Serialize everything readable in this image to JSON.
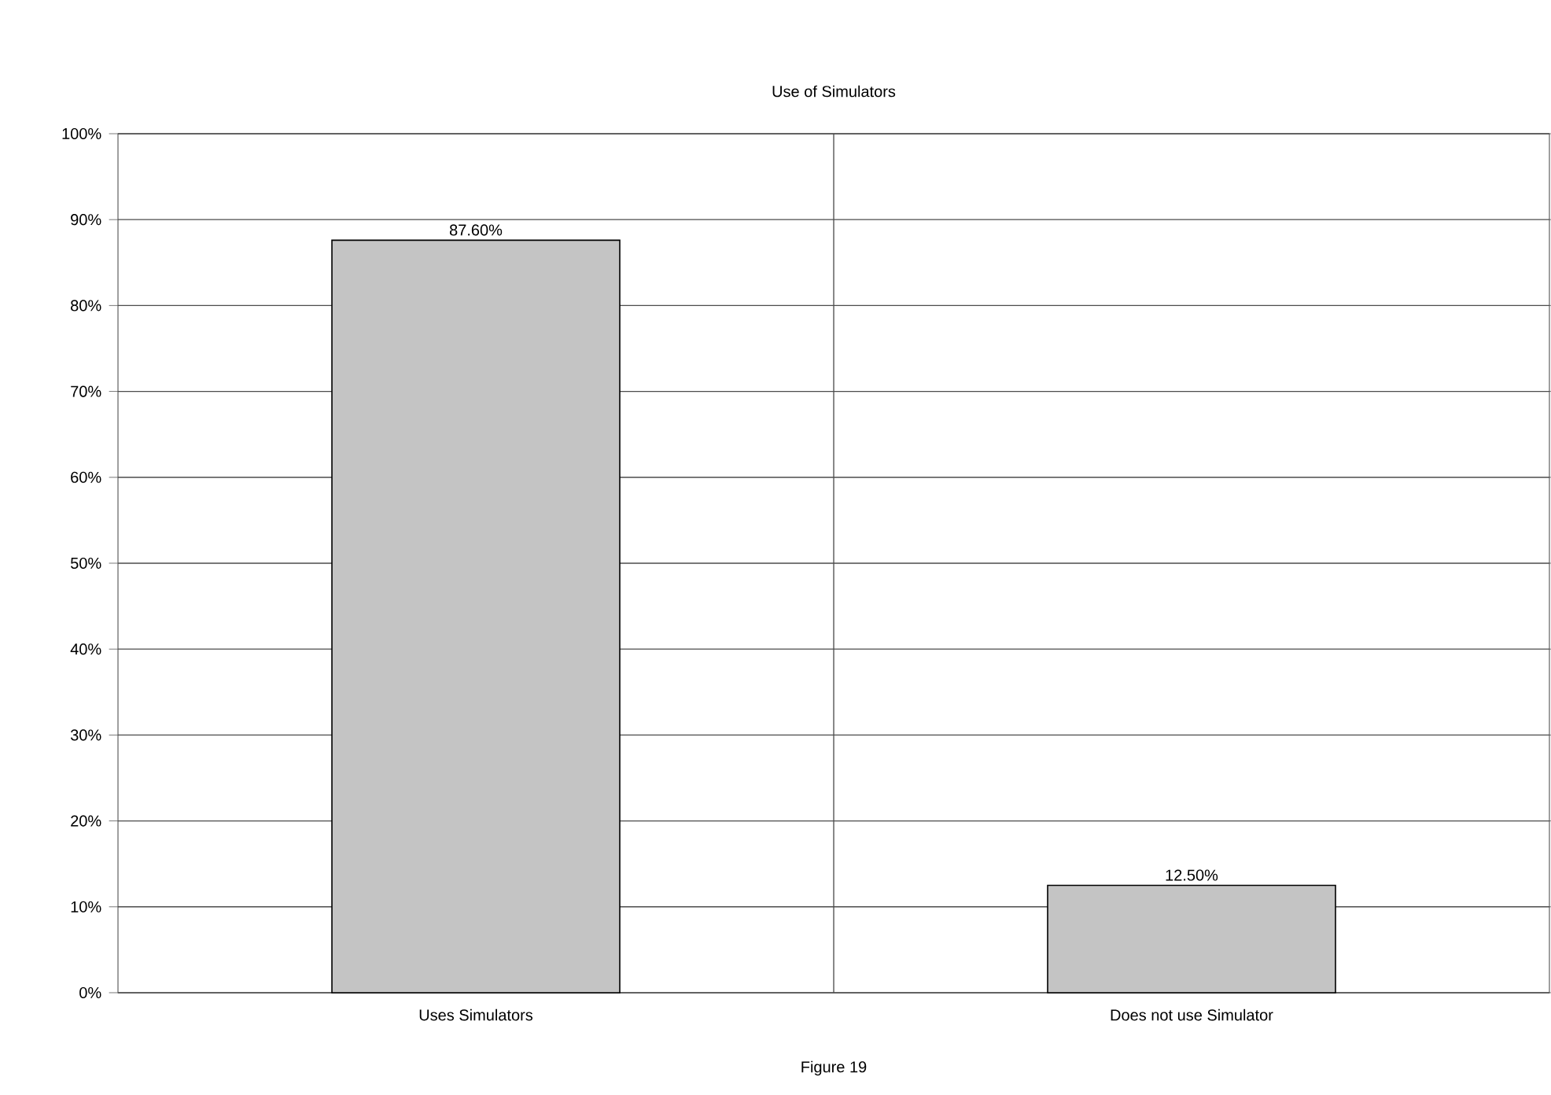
{
  "chart_data": {
    "type": "bar",
    "title": "Use of Simulators",
    "categories": [
      "Uses Simulators",
      "Does not use Simulator"
    ],
    "values": [
      87.6,
      12.5
    ],
    "color": "#c4c4c4",
    "value_labels": [
      "87.60%",
      "12.50%"
    ],
    "ylim": [
      0,
      100
    ],
    "yticks": [
      {
        "value": 0,
        "label": "0%"
      },
      {
        "value": 10,
        "label": "10%"
      },
      {
        "value": 20,
        "label": "20%"
      },
      {
        "value": 30,
        "label": "30%"
      },
      {
        "value": 40,
        "label": "40%"
      },
      {
        "value": 50,
        "label": "50%"
      },
      {
        "value": 60,
        "label": "60%"
      },
      {
        "value": 70,
        "label": "70%"
      },
      {
        "value": 80,
        "label": "80%"
      },
      {
        "value": 90,
        "label": "90%"
      },
      {
        "value": 100,
        "label": "100%"
      }
    ],
    "grid": true,
    "annotations": [
      "Figure 19"
    ]
  }
}
